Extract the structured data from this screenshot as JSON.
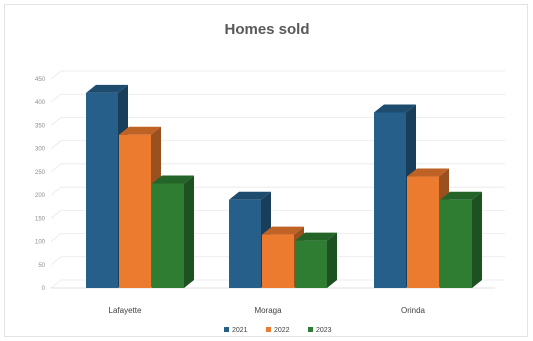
{
  "chart_data": {
    "type": "bar",
    "title": "Homes sold",
    "xlabel": "",
    "ylabel": "",
    "categories": [
      "Lafayette",
      "Moraga",
      "Orinda"
    ],
    "series": [
      {
        "name": "2021",
        "values": [
          420,
          190,
          378
        ],
        "color": "#265f8a"
      },
      {
        "name": "2022",
        "values": [
          330,
          115,
          240
        ],
        "color": "#ed7b2f"
      },
      {
        "name": "2023",
        "values": [
          225,
          102,
          190
        ],
        "color": "#2e7d32"
      }
    ],
    "ylim": [
      0,
      450
    ],
    "yticks": [
      0,
      50,
      100,
      150,
      200,
      250,
      300,
      350,
      400,
      450
    ],
    "grid": true,
    "legend_position": "bottom"
  }
}
